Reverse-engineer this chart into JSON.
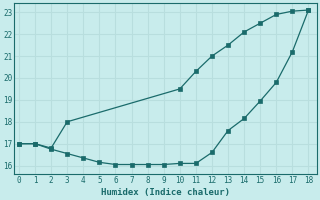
{
  "xlabel": "Humidex (Indice chaleur)",
  "bg_color": "#c8ecec",
  "line_color": "#1a6b6b",
  "grid_color": "#b8dede",
  "x_upper": [
    0,
    1,
    2,
    3,
    10,
    11,
    12,
    13,
    14,
    15,
    16,
    17,
    18
  ],
  "y_upper": [
    17.0,
    17.0,
    16.8,
    18.0,
    19.5,
    20.3,
    21.0,
    21.5,
    22.1,
    22.5,
    22.9,
    23.05,
    23.1
  ],
  "x_lower": [
    0,
    1,
    2,
    3,
    4,
    5,
    6,
    7,
    8,
    9,
    10,
    11,
    12,
    13,
    14,
    15,
    16,
    17,
    18
  ],
  "y_lower": [
    17.0,
    17.0,
    16.75,
    16.55,
    16.35,
    16.15,
    16.05,
    16.05,
    16.05,
    16.05,
    16.1,
    16.1,
    16.6,
    17.6,
    18.15,
    18.95,
    19.8,
    21.2,
    23.1
  ],
  "xlim": [
    -0.3,
    18.5
  ],
  "ylim": [
    15.6,
    23.4
  ],
  "yticks": [
    16,
    17,
    18,
    19,
    20,
    21,
    22,
    23
  ],
  "xticks": [
    0,
    1,
    2,
    3,
    4,
    5,
    6,
    7,
    8,
    9,
    10,
    11,
    12,
    13,
    14,
    15,
    16,
    17,
    18
  ]
}
